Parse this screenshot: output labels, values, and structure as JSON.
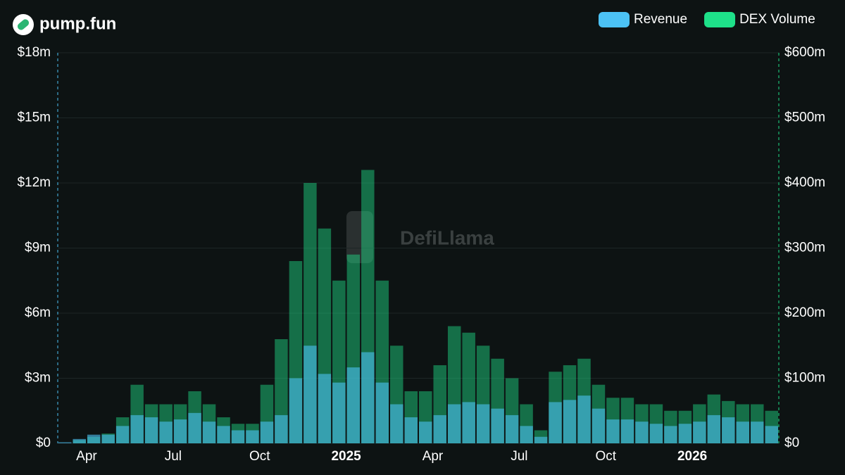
{
  "chart_data": {
    "type": "bar",
    "title": "pump.fun",
    "watermark": "DefiLlama",
    "legend": "top-right",
    "grid": true,
    "categories": [
      null,
      null,
      "Apr",
      null,
      null,
      null,
      null,
      null,
      "Jul",
      null,
      null,
      null,
      null,
      null,
      "Oct",
      null,
      null,
      null,
      null,
      null,
      "2025",
      null,
      null,
      null,
      null,
      null,
      "Apr",
      null,
      null,
      null,
      null,
      null,
      "Jul",
      null,
      null,
      null,
      null,
      null,
      "Oct",
      null,
      null,
      null,
      null,
      null,
      "2026",
      null,
      null,
      null,
      null,
      null
    ],
    "ylim": [
      0,
      18
    ],
    "yticks": [
      {
        "value": 0,
        "label": "$0"
      },
      {
        "value": 3,
        "label": "$3m"
      },
      {
        "value": 6,
        "label": "$6m"
      },
      {
        "value": 9,
        "label": "$9m"
      },
      {
        "value": 12,
        "label": "$12m"
      },
      {
        "value": 15,
        "label": "$15m"
      },
      {
        "value": 18,
        "label": "$18m"
      }
    ],
    "y2lim": [
      0,
      600
    ],
    "y2ticks": [
      {
        "value": 0,
        "label": "$0"
      },
      {
        "value": 100,
        "label": "$100m"
      },
      {
        "value": 200,
        "label": "$200m"
      },
      {
        "value": 300,
        "label": "$300m"
      },
      {
        "value": 400,
        "label": "$400m"
      },
      {
        "value": 500,
        "label": "$500m"
      },
      {
        "value": 600,
        "label": "$600m"
      }
    ],
    "series": [
      {
        "name": "DEX Volume",
        "color": "#1ee089",
        "axis": "y2",
        "values": [
          0,
          5,
          10,
          15,
          40,
          90,
          60,
          60,
          60,
          80,
          60,
          40,
          30,
          30,
          90,
          160,
          280,
          400,
          330,
          250,
          290,
          420,
          250,
          150,
          80,
          80,
          120,
          180,
          170,
          150,
          130,
          100,
          60,
          20,
          110,
          120,
          130,
          90,
          70,
          70,
          60,
          60,
          50,
          50,
          60,
          75,
          65,
          60,
          60,
          50
        ]
      },
      {
        "name": "Revenue",
        "color": "#4cc2f5",
        "values": [
          0.05,
          0.2,
          0.4,
          0.4,
          0.8,
          1.3,
          1.2,
          1.0,
          1.1,
          1.4,
          1.0,
          0.8,
          0.6,
          0.6,
          1.0,
          1.3,
          3.0,
          4.5,
          3.2,
          2.8,
          3.5,
          4.2,
          2.8,
          1.8,
          1.2,
          1.0,
          1.3,
          1.8,
          1.9,
          1.8,
          1.6,
          1.3,
          0.8,
          0.3,
          1.9,
          2.0,
          2.2,
          1.6,
          1.1,
          1.1,
          1.0,
          0.9,
          0.8,
          0.9,
          1.0,
          1.3,
          1.2,
          1.0,
          1.0,
          0.8
        ]
      }
    ]
  }
}
